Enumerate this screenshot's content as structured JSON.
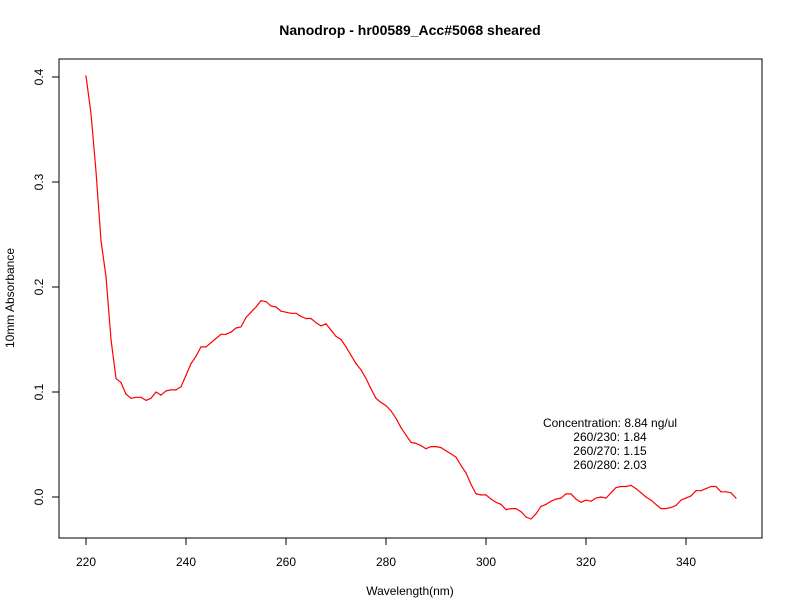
{
  "chart_data": {
    "type": "line",
    "title": "Nanodrop - hr00589_Acc#5068 sheared",
    "xlabel": "Wavelength(nm)",
    "ylabel": "10mm Absorbance",
    "xlim": [
      220,
      350
    ],
    "ylim": [
      0.0,
      0.4
    ],
    "xticks": [
      220,
      240,
      260,
      280,
      300,
      320,
      340
    ],
    "xtick_labels": [
      "220",
      "240",
      "260",
      "280",
      "300",
      "320",
      "340"
    ],
    "yticks": [
      0.0,
      0.1,
      0.2,
      0.3,
      0.4
    ],
    "ytick_labels": [
      "0.0",
      "0.1",
      "0.2",
      "0.3",
      "0.4"
    ],
    "grid": false,
    "line_color": "#ff0000",
    "series": [
      {
        "x": [
          220,
          221,
          222,
          223,
          224,
          225,
          226,
          227,
          228,
          229,
          230,
          231,
          232,
          233,
          234,
          235,
          236,
          237,
          238,
          239,
          240,
          241,
          242,
          243,
          244,
          245,
          246,
          247,
          248,
          249,
          250,
          251,
          252,
          253,
          254,
          255,
          256,
          257,
          258,
          259,
          260,
          261,
          262,
          263,
          264,
          265,
          266,
          267,
          268,
          269,
          270,
          271,
          272,
          273,
          274,
          275,
          276,
          277,
          278,
          279,
          280,
          281,
          282,
          283,
          284,
          285,
          286,
          287,
          288,
          289,
          290,
          291,
          292,
          293,
          294,
          295,
          296,
          297,
          298,
          299,
          300,
          301,
          302,
          303,
          304,
          305,
          306,
          307,
          308,
          309,
          310,
          311,
          312,
          313,
          314,
          315,
          316,
          317,
          318,
          319,
          320,
          321,
          322,
          323,
          324,
          325,
          326,
          327,
          328,
          329,
          330,
          331,
          332,
          333,
          334,
          335,
          336,
          337,
          338,
          339,
          340,
          341,
          342,
          343,
          344,
          345,
          346,
          347,
          348,
          349,
          350
        ],
        "y": [
          0.401,
          0.365,
          0.31,
          0.244,
          0.21,
          0.15,
          0.113,
          0.109,
          0.098,
          0.094,
          0.095,
          0.095,
          0.092,
          0.094,
          0.1,
          0.097,
          0.101,
          0.102,
          0.102,
          0.105,
          0.116,
          0.127,
          0.134,
          0.143,
          0.143,
          0.147,
          0.151,
          0.155,
          0.155,
          0.157,
          0.161,
          0.162,
          0.171,
          0.176,
          0.181,
          0.187,
          0.186,
          0.182,
          0.181,
          0.177,
          0.176,
          0.175,
          0.175,
          0.172,
          0.17,
          0.17,
          0.166,
          0.163,
          0.165,
          0.159,
          0.153,
          0.15,
          0.143,
          0.135,
          0.127,
          0.121,
          0.113,
          0.103,
          0.094,
          0.09,
          0.087,
          0.082,
          0.075,
          0.066,
          0.059,
          0.052,
          0.051,
          0.049,
          0.046,
          0.048,
          0.048,
          0.047,
          0.044,
          0.041,
          0.038,
          0.03,
          0.023,
          0.012,
          0.003,
          0.002,
          0.002,
          -0.002,
          -0.005,
          -0.007,
          -0.012,
          -0.011,
          -0.011,
          -0.014,
          -0.019,
          -0.021,
          -0.016,
          -0.009,
          -0.007,
          -0.004,
          -0.002,
          -0.001,
          0.003,
          0.003,
          -0.002,
          -0.005,
          -0.003,
          -0.004,
          -0.001,
          0.0,
          -0.001,
          0.004,
          0.009,
          0.01,
          0.01,
          0.011,
          0.008,
          0.004,
          0.0,
          -0.003,
          -0.007,
          -0.011,
          -0.011,
          -0.01,
          -0.008,
          -0.003,
          -0.001,
          0.001,
          0.006,
          0.006,
          0.008,
          0.01,
          0.01,
          0.005,
          0.005,
          0.004,
          -0.001
        ]
      }
    ],
    "annotations": [
      "Concentration: 8.84 ng/ul",
      "260/230: 1.84",
      "260/270: 1.15",
      "260/280: 2.03"
    ]
  }
}
